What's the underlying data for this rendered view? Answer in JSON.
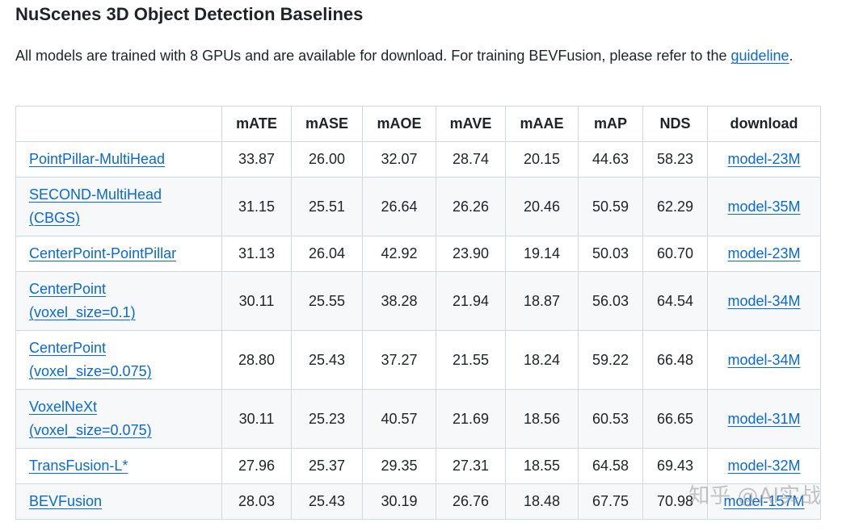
{
  "title": "NuScenes 3D Object Detection Baselines",
  "intro": {
    "text": "All models are trained with 8 GPUs and are available for download. For training BEVFusion, please refer to the ",
    "link": "guideline",
    "suffix": "."
  },
  "table": {
    "headers": [
      "",
      "mATE",
      "mASE",
      "mAOE",
      "mAVE",
      "mAAE",
      "mAP",
      "NDS",
      "download"
    ],
    "rows": [
      {
        "model": "PointPillar-MultiHead",
        "mATE": "33.87",
        "mASE": "26.00",
        "mAOE": "32.07",
        "mAVE": "28.74",
        "mAAE": "20.15",
        "mAP": "44.63",
        "NDS": "58.23",
        "download": "model-23M"
      },
      {
        "model": "SECOND-MultiHead (CBGS)",
        "mATE": "31.15",
        "mASE": "25.51",
        "mAOE": "26.64",
        "mAVE": "26.26",
        "mAAE": "20.46",
        "mAP": "50.59",
        "NDS": "62.29",
        "download": "model-35M"
      },
      {
        "model": "CenterPoint-PointPillar",
        "mATE": "31.13",
        "mASE": "26.04",
        "mAOE": "42.92",
        "mAVE": "23.90",
        "mAAE": "19.14",
        "mAP": "50.03",
        "NDS": "60.70",
        "download": "model-23M"
      },
      {
        "model": "CenterPoint (voxel_size=0.1)",
        "mATE": "30.11",
        "mASE": "25.55",
        "mAOE": "38.28",
        "mAVE": "21.94",
        "mAAE": "18.87",
        "mAP": "56.03",
        "NDS": "64.54",
        "download": "model-34M"
      },
      {
        "model": "CenterPoint (voxel_size=0.075)",
        "mATE": "28.80",
        "mASE": "25.43",
        "mAOE": "37.27",
        "mAVE": "21.55",
        "mAAE": "18.24",
        "mAP": "59.22",
        "NDS": "66.48",
        "download": "model-34M"
      },
      {
        "model": "VoxelNeXt (voxel_size=0.075)",
        "mATE": "30.11",
        "mASE": "25.23",
        "mAOE": "40.57",
        "mAVE": "21.69",
        "mAAE": "18.56",
        "mAP": "60.53",
        "NDS": "66.65",
        "download": "model-31M"
      },
      {
        "model": "TransFusion-L*",
        "mATE": "27.96",
        "mASE": "25.37",
        "mAOE": "29.35",
        "mAVE": "27.31",
        "mAAE": "18.55",
        "mAP": "64.58",
        "NDS": "69.43",
        "download": "model-32M"
      },
      {
        "model": "BEVFusion",
        "mATE": "28.03",
        "mASE": "25.43",
        "mAOE": "30.19",
        "mAVE": "26.76",
        "mAAE": "18.48",
        "mAP": "67.75",
        "NDS": "70.98",
        "download": "model-157M"
      }
    ]
  },
  "watermark": "知乎 @AI实战"
}
